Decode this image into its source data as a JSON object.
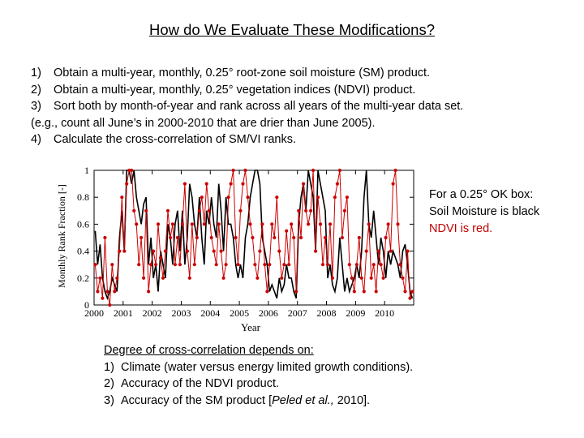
{
  "slide": {
    "title": "How do We Evaluate These Modifications?",
    "steps": [
      {
        "num": "1)",
        "text": "Obtain a multi-year, monthly, 0.25° root-zone soil moisture (SM) product."
      },
      {
        "num": "2)",
        "text": "Obtain a multi-year, monthly, 0.25° vegetation indices (NDVI) product."
      },
      {
        "num": "3)",
        "text": "Sort both by month-of-year and rank across all years of the multi-year data set."
      },
      {
        "num": "",
        "text": "(e.g., count all June’s in 2000-2010 that are drier than June 2005)."
      },
      {
        "num": "4)",
        "text": "Calculate the cross-correlation of SM/VI ranks."
      }
    ],
    "note": {
      "line1": "For a 0.25° OK box:",
      "line2": "Soil Moisture is black",
      "line3": "NDVI  is red."
    },
    "degree": {
      "heading": "Degree of cross-correlation depends on:",
      "items": [
        {
          "num": "1)",
          "text": "Climate (water versus energy limited growth conditions)."
        },
        {
          "num": "2)",
          "text": "Accuracy of the NDVI product."
        },
        {
          "num": "3)",
          "text_before": "Accuracy of the SM product [",
          "citation": "Peled et al.,",
          "text_after": " 2010]."
        }
      ]
    }
  },
  "colors": {
    "soil_moisture": "#000000",
    "ndvi": "#cc0000"
  },
  "chart_data": {
    "type": "line",
    "xlabel": "Year",
    "ylabel": "Monthly Rank Fraction  [-]",
    "xlim": [
      2000,
      2011
    ],
    "ylim": [
      0,
      1
    ],
    "x_ticks": [
      2000,
      2001,
      2002,
      2003,
      2004,
      2005,
      2006,
      2007,
      2008,
      2009,
      2010
    ],
    "y_ticks": [
      0,
      0.2,
      0.4,
      0.6,
      0.8,
      1
    ],
    "y_tick_labels": [
      "0",
      "0.2",
      "0.4",
      "0.6",
      "0.8",
      "1"
    ],
    "series": [
      {
        "name": "Soil Moisture",
        "color": "#000000",
        "markers": false,
        "values": [
          0.55,
          0.3,
          0.45,
          0.2,
          0.1,
          0.05,
          0.1,
          0.2,
          0.15,
          0.1,
          0.5,
          0.7,
          0.4,
          1.0,
          1.0,
          0.9,
          1.0,
          0.8,
          0.7,
          0.6,
          0.75,
          0.8,
          0.3,
          0.5,
          0.2,
          0.3,
          0.1,
          0.4,
          0.3,
          0.2,
          0.6,
          0.5,
          0.3,
          0.6,
          0.7,
          0.4,
          0.7,
          0.3,
          0.5,
          0.9,
          0.8,
          0.6,
          0.5,
          0.8,
          0.5,
          0.3,
          0.7,
          0.6,
          0.8,
          0.6,
          0.5,
          0.9,
          0.7,
          0.4,
          0.8,
          0.6,
          0.6,
          0.5,
          0.3,
          0.2,
          0.3,
          0.2,
          0.5,
          0.6,
          0.8,
          0.9,
          1.0,
          1.0,
          0.9,
          0.5,
          0.4,
          0.3,
          0.1,
          0.15,
          0.1,
          0.05,
          0.2,
          0.1,
          0.15,
          0.3,
          0.2,
          0.2,
          0.1,
          0.05,
          0.6,
          0.8,
          0.9,
          0.7,
          1.0,
          0.9,
          0.8,
          0.4,
          1.0,
          0.9,
          0.8,
          0.7,
          0.2,
          0.3,
          0.15,
          0.1,
          0.2,
          0.5,
          0.3,
          0.1,
          0.2,
          0.1,
          0.15,
          0.2,
          0.3,
          0.2,
          0.4,
          0.8,
          1.0,
          0.6,
          0.5,
          0.7,
          0.5,
          0.3,
          0.5,
          0.4,
          0.2,
          0.4,
          0.3,
          0.4,
          0.35,
          0.3,
          0.2,
          0.4,
          0.45,
          0.3,
          0.1,
          0.05
        ]
      },
      {
        "name": "NDVI",
        "color": "#cc0000",
        "markers": true,
        "values": [
          0.3,
          0.1,
          0.2,
          0.05,
          0.5,
          0.1,
          0.0,
          0.3,
          0.1,
          0.2,
          0.4,
          0.8,
          0.4,
          0.9,
          1.0,
          1.0,
          0.7,
          0.6,
          0.3,
          0.5,
          0.2,
          0.7,
          0.1,
          0.3,
          0.4,
          0.3,
          0.6,
          0.35,
          0.2,
          0.4,
          0.7,
          0.5,
          0.6,
          0.3,
          0.5,
          0.3,
          0.6,
          0.9,
          0.4,
          0.2,
          0.6,
          0.3,
          0.5,
          0.7,
          0.8,
          0.6,
          0.9,
          0.7,
          0.5,
          0.4,
          0.3,
          0.6,
          0.4,
          0.2,
          0.3,
          0.8,
          0.9,
          1.0,
          0.5,
          0.3,
          0.7,
          0.9,
          1.0,
          0.8,
          0.6,
          0.5,
          0.3,
          0.2,
          0.4,
          0.6,
          0.3,
          0.1,
          0.3,
          0.6,
          0.5,
          0.8,
          0.4,
          0.2,
          0.3,
          0.55,
          0.3,
          0.6,
          0.5,
          0.1,
          0.7,
          0.5,
          0.9,
          0.7,
          0.6,
          0.7,
          1.0,
          0.4,
          0.8,
          0.6,
          0.3,
          0.5,
          0.3,
          0.6,
          0.2,
          0.8,
          0.9,
          1.0,
          0.5,
          0.7,
          0.8,
          0.3,
          0.2,
          0.1,
          0.3,
          0.5,
          0.2,
          0.1,
          0.4,
          0.6,
          0.2,
          0.3,
          0.1,
          0.4,
          0.3,
          0.2,
          0.5,
          0.6,
          0.4,
          0.9,
          1.0,
          0.6,
          0.3,
          0.2,
          0.1,
          0.4,
          0.05,
          0.1
        ]
      }
    ]
  }
}
